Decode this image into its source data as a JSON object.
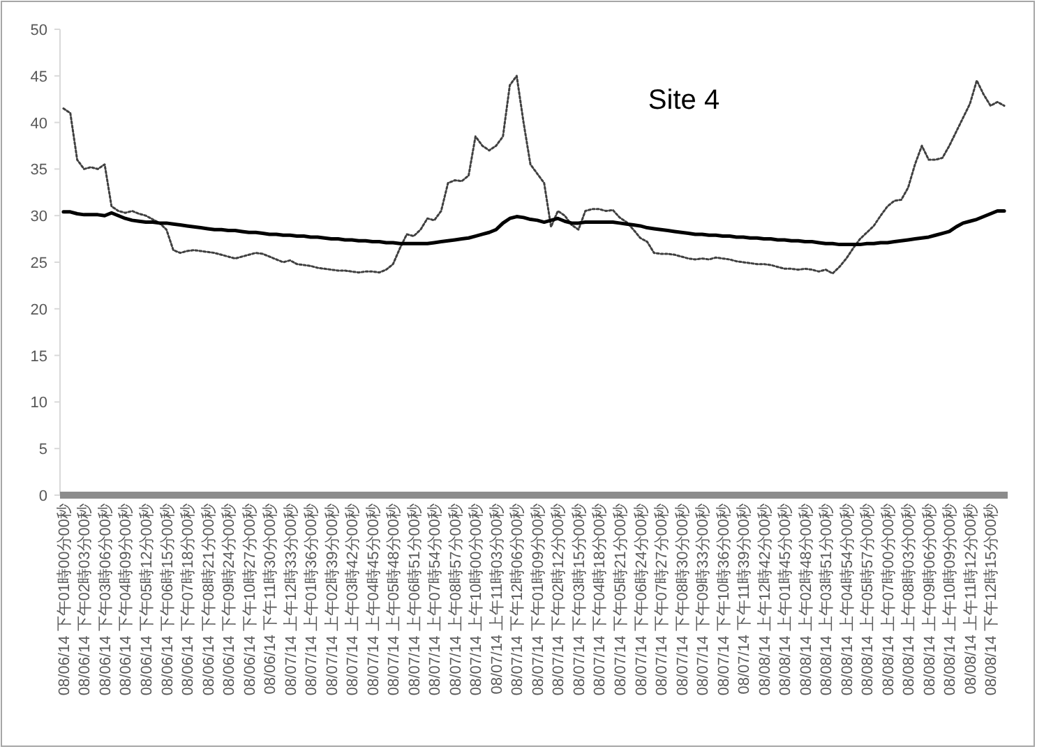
{
  "chart_data": {
    "type": "line",
    "title": "Site 4",
    "categories": [
      "08/06/14 下午01時00分00秒",
      null,
      null,
      "08/06/14 下午02時03分00秒",
      null,
      null,
      "08/06/14 下午03時06分00秒",
      null,
      null,
      "08/06/14 下午04時09分00秒",
      null,
      null,
      "08/06/14 下午05時12分00秒",
      null,
      null,
      "08/06/14 下午06時15分00秒",
      null,
      null,
      "08/06/14 下午07時18分00秒",
      null,
      null,
      "08/06/14 下午08時21分00秒",
      null,
      null,
      "08/06/14 下午09時24分00秒",
      null,
      null,
      "08/06/14 下午10時27分00秒",
      null,
      null,
      "08/06/14 下午11時30分00秒",
      null,
      null,
      "08/07/14 上午12時33分00秒",
      null,
      null,
      "08/07/14 上午01時36分00秒",
      null,
      null,
      "08/07/14 上午02時39分00秒",
      null,
      null,
      "08/07/14 上午03時42分00秒",
      null,
      null,
      "08/07/14 上午04時45分00秒",
      null,
      null,
      "08/07/14 上午05時48分00秒",
      null,
      null,
      "08/07/14 上午06時51分00秒",
      null,
      null,
      "08/07/14 上午07時54分00秒",
      null,
      null,
      "08/07/14 上午08時57分00秒",
      null,
      null,
      "08/07/14 上午10時00分00秒",
      null,
      null,
      "08/07/14 上午11時03分00秒",
      null,
      null,
      "08/07/14 下午12時06分00秒",
      null,
      null,
      "08/07/14 下午01時09分00秒",
      null,
      null,
      "08/07/14 下午02時12分00秒",
      null,
      null,
      "08/07/14 下午03時15分00秒",
      null,
      null,
      "08/07/14 下午04時18分00秒",
      null,
      null,
      "08/07/14 下午05時21分00秒",
      null,
      null,
      "08/07/14 下午06時24分00秒",
      null,
      null,
      "08/07/14 下午07時27分00秒",
      null,
      null,
      "08/07/14 下午08時30分00秒",
      null,
      null,
      "08/07/14 下午09時33分00秒",
      null,
      null,
      "08/07/14 下午10時36分00秒",
      null,
      null,
      "08/07/14 下午11時39分00秒",
      null,
      null,
      "08/08/14 上午12時42分00秒",
      null,
      null,
      "08/08/14 上午01時45分00秒",
      null,
      null,
      "08/08/14 上午02時48分00秒",
      null,
      null,
      "08/08/14 上午03時51分00秒",
      null,
      null,
      "08/08/14 上午04時54分00秒",
      null,
      null,
      "08/08/14 上午05時57分00秒",
      null,
      null,
      "08/08/14 上午07時00分00秒",
      null,
      null,
      "08/08/14 上午08時03分00秒",
      null,
      null,
      "08/08/14 上午09時06分00秒",
      null,
      null,
      "08/08/14 上午10時09分00秒",
      null,
      null,
      "08/08/14 上午11時12分00秒",
      null,
      null,
      "08/08/14 下午12時15分00秒",
      null,
      null
    ],
    "series": [
      {
        "color": "#404040",
        "line_style": "dotted",
        "values": [
          41.5,
          41,
          36,
          35,
          35.2,
          35,
          35.5,
          31,
          30.5,
          30.3,
          30.5,
          30.2,
          30,
          29.6,
          29.2,
          28.5,
          26.3,
          26,
          26.2,
          26.3,
          26.2,
          26.1,
          26,
          25.8,
          25.6,
          25.4,
          25.6,
          25.8,
          26,
          25.9,
          25.6,
          25.3,
          25,
          25.2,
          24.8,
          24.7,
          24.6,
          24.4,
          24.3,
          24.2,
          24.1,
          24.1,
          24,
          23.9,
          24,
          24,
          23.9,
          24.2,
          24.8,
          26.5,
          28,
          27.8,
          28.5,
          29.7,
          29.5,
          30.5,
          33.5,
          33.8,
          33.7,
          34.3,
          38.5,
          37.5,
          37,
          37.5,
          38.5,
          44,
          45,
          40,
          35.5,
          34.5,
          33.5,
          28.8,
          30.5,
          30,
          29,
          28.5,
          30.5,
          30.7,
          30.7,
          30.5,
          30.6,
          29.8,
          29.3,
          28.5,
          27.6,
          27.2,
          26,
          25.9,
          25.9,
          25.8,
          25.6,
          25.4,
          25.3,
          25.4,
          25.3,
          25.5,
          25.4,
          25.3,
          25.1,
          25,
          24.9,
          24.8,
          24.8,
          24.7,
          24.5,
          24.3,
          24.3,
          24.2,
          24.3,
          24.2,
          24,
          24.2,
          23.8,
          24.5,
          25.4,
          26.5,
          27.5,
          28.2,
          28.9,
          30,
          31,
          31.6,
          31.7,
          33,
          35.5,
          37.5,
          36,
          36,
          36.2,
          37.5,
          39,
          40.5,
          42,
          44.5,
          43,
          41.8,
          42.2,
          41.8
        ]
      },
      {
        "color": "#000000",
        "line_style": "solid",
        "values": [
          30.4,
          30.4,
          30.2,
          30.1,
          30.1,
          30.1,
          30.0,
          30.3,
          30.0,
          29.7,
          29.5,
          29.4,
          29.3,
          29.3,
          29.2,
          29.2,
          29.1,
          29.0,
          28.9,
          28.8,
          28.7,
          28.6,
          28.5,
          28.5,
          28.4,
          28.4,
          28.3,
          28.2,
          28.2,
          28.1,
          28.0,
          28.0,
          27.9,
          27.9,
          27.8,
          27.8,
          27.7,
          27.7,
          27.6,
          27.5,
          27.5,
          27.4,
          27.4,
          27.3,
          27.3,
          27.2,
          27.2,
          27.1,
          27.1,
          27.0,
          27.0,
          27.0,
          27.0,
          27.0,
          27.1,
          27.2,
          27.3,
          27.4,
          27.5,
          27.6,
          27.8,
          28.0,
          28.2,
          28.5,
          29.2,
          29.7,
          29.9,
          29.8,
          29.6,
          29.5,
          29.3,
          29.5,
          29.7,
          29.4,
          29.2,
          29.2,
          29.3,
          29.3,
          29.3,
          29.3,
          29.3,
          29.2,
          29.1,
          29.0,
          28.9,
          28.7,
          28.6,
          28.5,
          28.4,
          28.3,
          28.2,
          28.1,
          28.0,
          28.0,
          27.9,
          27.9,
          27.8,
          27.8,
          27.7,
          27.7,
          27.6,
          27.6,
          27.5,
          27.5,
          27.4,
          27.4,
          27.3,
          27.3,
          27.2,
          27.2,
          27.1,
          27.0,
          27.0,
          26.9,
          26.9,
          26.9,
          26.9,
          27.0,
          27.0,
          27.1,
          27.1,
          27.2,
          27.3,
          27.4,
          27.5,
          27.6,
          27.7,
          27.9,
          28.1,
          28.3,
          28.8,
          29.2,
          29.4,
          29.6,
          29.9,
          30.2,
          30.5,
          30.5
        ]
      }
    ],
    "ylim": [
      0,
      50
    ],
    "yticks": [
      0,
      5,
      10,
      15,
      20,
      25,
      30,
      35,
      40,
      45,
      50
    ]
  }
}
